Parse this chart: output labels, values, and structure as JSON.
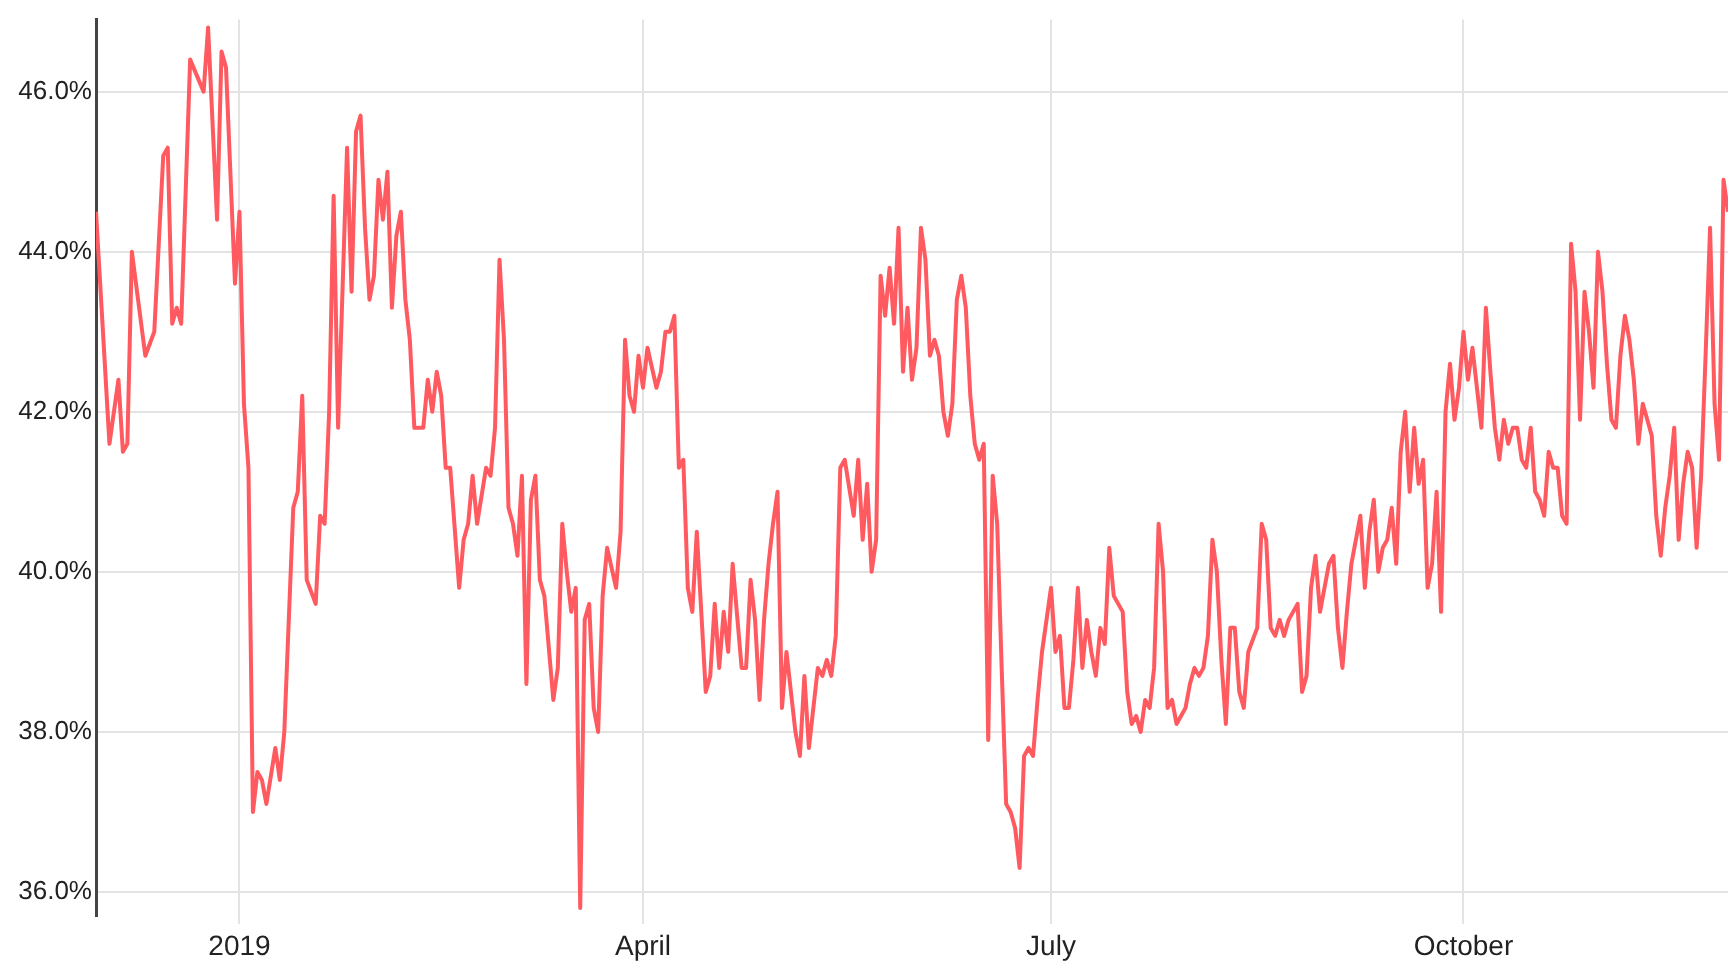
{
  "chart_data": {
    "type": "line",
    "grid": true,
    "legend": false,
    "xlim": [
      "2018-11-30",
      "2019-11-29"
    ],
    "xticks": [
      {
        "value": "2019-01-01",
        "label": "2019"
      },
      {
        "value": "2019-04-01",
        "label": "April"
      },
      {
        "value": "2019-07-01",
        "label": "July"
      },
      {
        "value": "2019-10-01",
        "label": "October"
      }
    ],
    "ylim": [
      35.7,
      46.9
    ],
    "yticks": [
      {
        "value": 36,
        "label": "36.0%"
      },
      {
        "value": 38,
        "label": "38.0%"
      },
      {
        "value": 40,
        "label": "40.0%"
      },
      {
        "value": 42,
        "label": "42.0%"
      },
      {
        "value": 44,
        "label": "44.0%"
      },
      {
        "value": 46,
        "label": "46.0%"
      }
    ],
    "x": [
      "2018-11-30",
      "2018-12-03",
      "2018-12-05",
      "2018-12-06",
      "2018-12-07",
      "2018-12-08",
      "2018-12-11",
      "2018-12-13",
      "2018-12-15",
      "2018-12-16",
      "2018-12-17",
      "2018-12-18",
      "2018-12-19",
      "2018-12-21",
      "2018-12-24",
      "2018-12-25",
      "2018-12-27",
      "2018-12-28",
      "2018-12-29",
      "2018-12-31",
      "2019-01-01",
      "2019-01-02",
      "2019-01-03",
      "2019-01-04",
      "2019-01-05",
      "2019-01-06",
      "2019-01-07",
      "2019-01-09",
      "2019-01-10",
      "2019-01-11",
      "2019-01-13",
      "2019-01-14",
      "2019-01-15",
      "2019-01-16",
      "2019-01-18",
      "2019-01-19",
      "2019-01-20",
      "2019-01-21",
      "2019-01-22",
      "2019-01-23",
      "2019-01-25",
      "2019-01-26",
      "2019-01-27",
      "2019-01-28",
      "2019-01-29",
      "2019-01-30",
      "2019-01-31",
      "2019-02-01",
      "2019-02-02",
      "2019-02-03",
      "2019-02-04",
      "2019-02-05",
      "2019-02-06",
      "2019-02-07",
      "2019-02-08",
      "2019-02-09",
      "2019-02-11",
      "2019-02-12",
      "2019-02-13",
      "2019-02-14",
      "2019-02-15",
      "2019-02-16",
      "2019-02-17",
      "2019-02-19",
      "2019-02-20",
      "2019-02-21",
      "2019-02-22",
      "2019-02-23",
      "2019-02-25",
      "2019-02-26",
      "2019-02-27",
      "2019-02-28",
      "2019-03-01",
      "2019-03-02",
      "2019-03-03",
      "2019-03-04",
      "2019-03-05",
      "2019-03-06",
      "2019-03-07",
      "2019-03-08",
      "2019-03-09",
      "2019-03-10",
      "2019-03-12",
      "2019-03-13",
      "2019-03-14",
      "2019-03-15",
      "2019-03-16",
      "2019-03-17",
      "2019-03-18",
      "2019-03-19",
      "2019-03-20",
      "2019-03-21",
      "2019-03-22",
      "2019-03-23",
      "2019-03-24",
      "2019-03-26",
      "2019-03-27",
      "2019-03-28",
      "2019-03-29",
      "2019-03-30",
      "2019-03-31",
      "2019-04-01",
      "2019-04-02",
      "2019-04-04",
      "2019-04-05",
      "2019-04-06",
      "2019-04-07",
      "2019-04-08",
      "2019-04-09",
      "2019-04-10",
      "2019-04-11",
      "2019-04-12",
      "2019-04-13",
      "2019-04-15",
      "2019-04-16",
      "2019-04-17",
      "2019-04-18",
      "2019-04-19",
      "2019-04-20",
      "2019-04-21",
      "2019-04-23",
      "2019-04-24",
      "2019-04-25",
      "2019-04-26",
      "2019-04-27",
      "2019-04-28",
      "2019-04-29",
      "2019-04-30",
      "2019-05-01",
      "2019-05-02",
      "2019-05-03",
      "2019-05-05",
      "2019-05-06",
      "2019-05-07",
      "2019-05-08",
      "2019-05-10",
      "2019-05-11",
      "2019-05-12",
      "2019-05-13",
      "2019-05-14",
      "2019-05-15",
      "2019-05-16",
      "2019-05-18",
      "2019-05-19",
      "2019-05-20",
      "2019-05-21",
      "2019-05-22",
      "2019-05-23",
      "2019-05-24",
      "2019-05-25",
      "2019-05-26",
      "2019-05-27",
      "2019-05-28",
      "2019-05-29",
      "2019-05-30",
      "2019-05-31",
      "2019-06-01",
      "2019-06-02",
      "2019-06-03",
      "2019-06-04",
      "2019-06-05",
      "2019-06-06",
      "2019-06-07",
      "2019-06-08",
      "2019-06-09",
      "2019-06-10",
      "2019-06-11",
      "2019-06-12",
      "2019-06-13",
      "2019-06-14",
      "2019-06-15",
      "2019-06-16",
      "2019-06-17",
      "2019-06-18",
      "2019-06-19",
      "2019-06-20",
      "2019-06-21",
      "2019-06-22",
      "2019-06-23",
      "2019-06-24",
      "2019-06-25",
      "2019-06-26",
      "2019-06-27",
      "2019-06-28",
      "2019-06-29",
      "2019-07-01",
      "2019-07-02",
      "2019-07-03",
      "2019-07-04",
      "2019-07-05",
      "2019-07-06",
      "2019-07-07",
      "2019-07-08",
      "2019-07-09",
      "2019-07-10",
      "2019-07-11",
      "2019-07-12",
      "2019-07-13",
      "2019-07-14",
      "2019-07-15",
      "2019-07-17",
      "2019-07-18",
      "2019-07-19",
      "2019-07-20",
      "2019-07-21",
      "2019-07-22",
      "2019-07-23",
      "2019-07-24",
      "2019-07-25",
      "2019-07-26",
      "2019-07-27",
      "2019-07-28",
      "2019-07-29",
      "2019-07-31",
      "2019-08-01",
      "2019-08-02",
      "2019-08-03",
      "2019-08-04",
      "2019-08-05",
      "2019-08-06",
      "2019-08-07",
      "2019-08-08",
      "2019-08-09",
      "2019-08-10",
      "2019-08-11",
      "2019-08-12",
      "2019-08-13",
      "2019-08-14",
      "2019-08-16",
      "2019-08-17",
      "2019-08-18",
      "2019-08-19",
      "2019-08-20",
      "2019-08-21",
      "2019-08-22",
      "2019-08-23",
      "2019-08-25",
      "2019-08-26",
      "2019-08-27",
      "2019-08-28",
      "2019-08-29",
      "2019-08-30",
      "2019-08-31",
      "2019-09-01",
      "2019-09-02",
      "2019-09-03",
      "2019-09-04",
      "2019-09-05",
      "2019-09-06",
      "2019-09-07",
      "2019-09-08",
      "2019-09-09",
      "2019-09-10",
      "2019-09-11",
      "2019-09-12",
      "2019-09-13",
      "2019-09-14",
      "2019-09-15",
      "2019-09-16",
      "2019-09-17",
      "2019-09-18",
      "2019-09-19",
      "2019-09-20",
      "2019-09-21",
      "2019-09-22",
      "2019-09-23",
      "2019-09-24",
      "2019-09-25",
      "2019-09-26",
      "2019-09-27",
      "2019-09-28",
      "2019-09-29",
      "2019-09-30",
      "2019-10-01",
      "2019-10-02",
      "2019-10-03",
      "2019-10-04",
      "2019-10-05",
      "2019-10-06",
      "2019-10-07",
      "2019-10-08",
      "2019-10-09",
      "2019-10-10",
      "2019-10-11",
      "2019-10-12",
      "2019-10-13",
      "2019-10-14",
      "2019-10-15",
      "2019-10-16",
      "2019-10-17",
      "2019-10-18",
      "2019-10-19",
      "2019-10-20",
      "2019-10-21",
      "2019-10-22",
      "2019-10-23",
      "2019-10-24",
      "2019-10-25",
      "2019-10-26",
      "2019-10-27",
      "2019-10-28",
      "2019-10-29",
      "2019-10-30",
      "2019-10-31",
      "2019-11-01",
      "2019-11-02",
      "2019-11-03",
      "2019-11-04",
      "2019-11-05",
      "2019-11-06",
      "2019-11-07",
      "2019-11-08",
      "2019-11-09",
      "2019-11-10",
      "2019-11-11",
      "2019-11-12",
      "2019-11-13",
      "2019-11-14",
      "2019-11-15",
      "2019-11-16",
      "2019-11-17",
      "2019-11-18",
      "2019-11-19",
      "2019-11-20",
      "2019-11-21",
      "2019-11-22",
      "2019-11-23",
      "2019-11-24",
      "2019-11-25",
      "2019-11-26",
      "2019-11-27",
      "2019-11-28",
      "2019-11-29"
    ],
    "series": [
      {
        "color": "#ff5a5f",
        "values": [
          44.5,
          41.6,
          42.4,
          41.5,
          41.6,
          44.0,
          42.7,
          43.0,
          45.2,
          45.3,
          43.1,
          43.3,
          43.1,
          46.4,
          46.0,
          46.8,
          44.4,
          46.5,
          46.3,
          43.6,
          44.5,
          42.1,
          41.3,
          37.0,
          37.5,
          37.4,
          37.1,
          37.8,
          37.4,
          38.0,
          40.8,
          41.0,
          42.2,
          39.9,
          39.6,
          40.7,
          40.6,
          42.0,
          44.7,
          41.8,
          45.3,
          43.5,
          45.5,
          45.7,
          44.3,
          43.4,
          43.7,
          44.9,
          44.4,
          45.0,
          43.3,
          44.2,
          44.5,
          43.4,
          42.9,
          41.8,
          41.8,
          42.4,
          42.0,
          42.5,
          42.2,
          41.3,
          41.3,
          39.8,
          40.4,
          40.6,
          41.2,
          40.6,
          41.3,
          41.2,
          41.8,
          43.9,
          42.9,
          40.8,
          40.6,
          40.2,
          41.2,
          38.6,
          40.9,
          41.2,
          39.9,
          39.7,
          38.4,
          38.8,
          40.6,
          40.0,
          39.5,
          39.8,
          35.8,
          39.4,
          39.6,
          38.3,
          38.0,
          39.7,
          40.3,
          39.8,
          40.5,
          42.9,
          42.2,
          42.0,
          42.7,
          42.3,
          42.8,
          42.3,
          42.5,
          43.0,
          43.0,
          43.2,
          41.3,
          41.4,
          39.8,
          39.5,
          40.5,
          38.5,
          38.7,
          39.6,
          38.8,
          39.5,
          39.0,
          40.1,
          38.8,
          38.8,
          39.9,
          39.4,
          38.4,
          39.4,
          40.1,
          40.6,
          41.0,
          38.3,
          39.0,
          38.0,
          37.7,
          38.7,
          37.8,
          38.8,
          38.7,
          38.9,
          38.7,
          39.2,
          41.3,
          41.4,
          40.7,
          41.4,
          40.4,
          41.1,
          40.0,
          40.4,
          43.7,
          43.2,
          43.8,
          43.1,
          44.3,
          42.5,
          43.3,
          42.4,
          42.8,
          44.3,
          43.9,
          42.7,
          42.9,
          42.7,
          42.0,
          41.7,
          42.1,
          43.4,
          43.7,
          43.3,
          42.2,
          41.6,
          41.4,
          41.6,
          37.9,
          41.2,
          40.6,
          38.8,
          37.1,
          37.0,
          36.8,
          36.3,
          37.7,
          37.8,
          37.7,
          38.4,
          39.0,
          39.8,
          39.0,
          39.2,
          38.3,
          38.3,
          38.9,
          39.8,
          38.8,
          39.4,
          39.0,
          38.7,
          39.3,
          39.1,
          40.3,
          39.7,
          39.5,
          38.5,
          38.1,
          38.2,
          38.0,
          38.4,
          38.3,
          38.8,
          40.6,
          40.0,
          38.3,
          38.4,
          38.1,
          38.3,
          38.6,
          38.8,
          38.7,
          38.8,
          39.2,
          40.4,
          40.0,
          38.9,
          38.1,
          39.3,
          39.3,
          38.5,
          38.3,
          39.0,
          39.3,
          40.6,
          40.4,
          39.3,
          39.2,
          39.4,
          39.2,
          39.4,
          39.6,
          38.5,
          38.7,
          39.8,
          40.2,
          39.5,
          39.8,
          40.1,
          40.2,
          39.3,
          38.8,
          39.5,
          40.1,
          40.4,
          40.7,
          39.8,
          40.5,
          40.9,
          40.0,
          40.3,
          40.4,
          40.8,
          40.1,
          41.5,
          42.0,
          41.0,
          41.8,
          41.1,
          41.4,
          39.8,
          40.1,
          41.0,
          39.5,
          42.0,
          42.6,
          41.9,
          42.3,
          43.0,
          42.4,
          42.8,
          42.3,
          41.8,
          43.3,
          42.5,
          41.8,
          41.4,
          41.9,
          41.6,
          41.8,
          41.8,
          41.4,
          41.3,
          41.8,
          41.0,
          40.9,
          40.7,
          41.5,
          41.3,
          41.3,
          40.7,
          40.6,
          44.1,
          43.5,
          41.9,
          43.5,
          43.0,
          42.3,
          44.0,
          43.5,
          42.6,
          41.9,
          41.8,
          42.7,
          43.2,
          42.9,
          42.4,
          41.6,
          42.1,
          41.9,
          41.7,
          40.7,
          40.2,
          40.8,
          41.2,
          41.8,
          40.4,
          41.1,
          41.5,
          41.3,
          40.3,
          41.2,
          42.7,
          44.3,
          42.1,
          41.4,
          44.9,
          44.5
        ]
      }
    ]
  }
}
